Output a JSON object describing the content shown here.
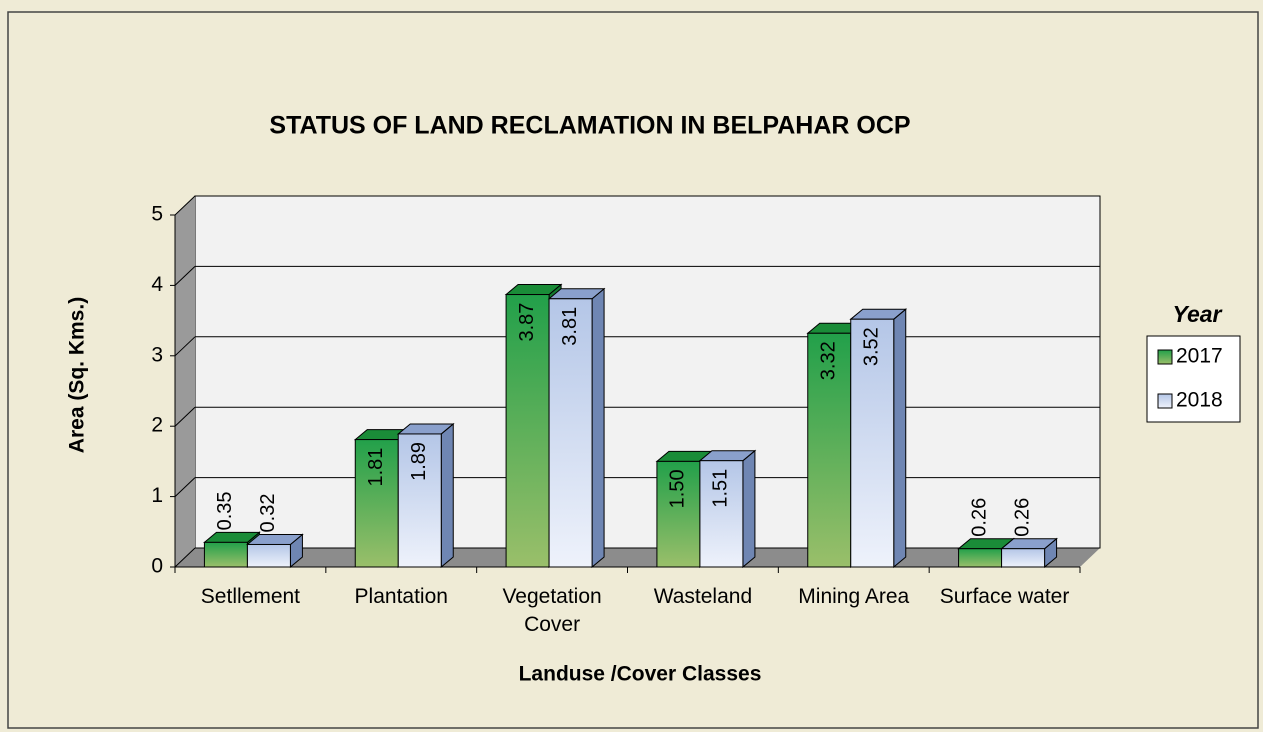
{
  "chart_data": {
    "type": "bar3d",
    "title": "STATUS OF LAND RECLAMATION  IN BELPAHAR OCP",
    "x_label": "Landuse /Cover Classes",
    "y_label": "Area (Sq. Kms.)",
    "legend_title": "Year",
    "categories": [
      "Setllement",
      "Plantation",
      "Vegetation Cover",
      "Wasteland",
      "Mining Area",
      "Surface water"
    ],
    "series": [
      {
        "name": "2017",
        "color": "#22a04a",
        "values": [
          0.35,
          1.81,
          3.87,
          1.5,
          3.32,
          0.26
        ],
        "value_labels": [
          "0.35",
          "1.81",
          "3.87",
          "1.50",
          "3.32",
          "0.26"
        ]
      },
      {
        "name": "2018",
        "color": "#b4c6e7",
        "values": [
          0.32,
          1.89,
          3.81,
          1.51,
          3.52,
          0.26
        ],
        "value_labels": [
          "0.32",
          "1.89",
          "3.81",
          "1.51",
          "3.52",
          "0.26"
        ]
      }
    ],
    "ylim": [
      0,
      5
    ],
    "yticks": [
      0,
      1,
      2,
      3,
      4,
      5
    ],
    "grid": true,
    "legend": "right"
  }
}
